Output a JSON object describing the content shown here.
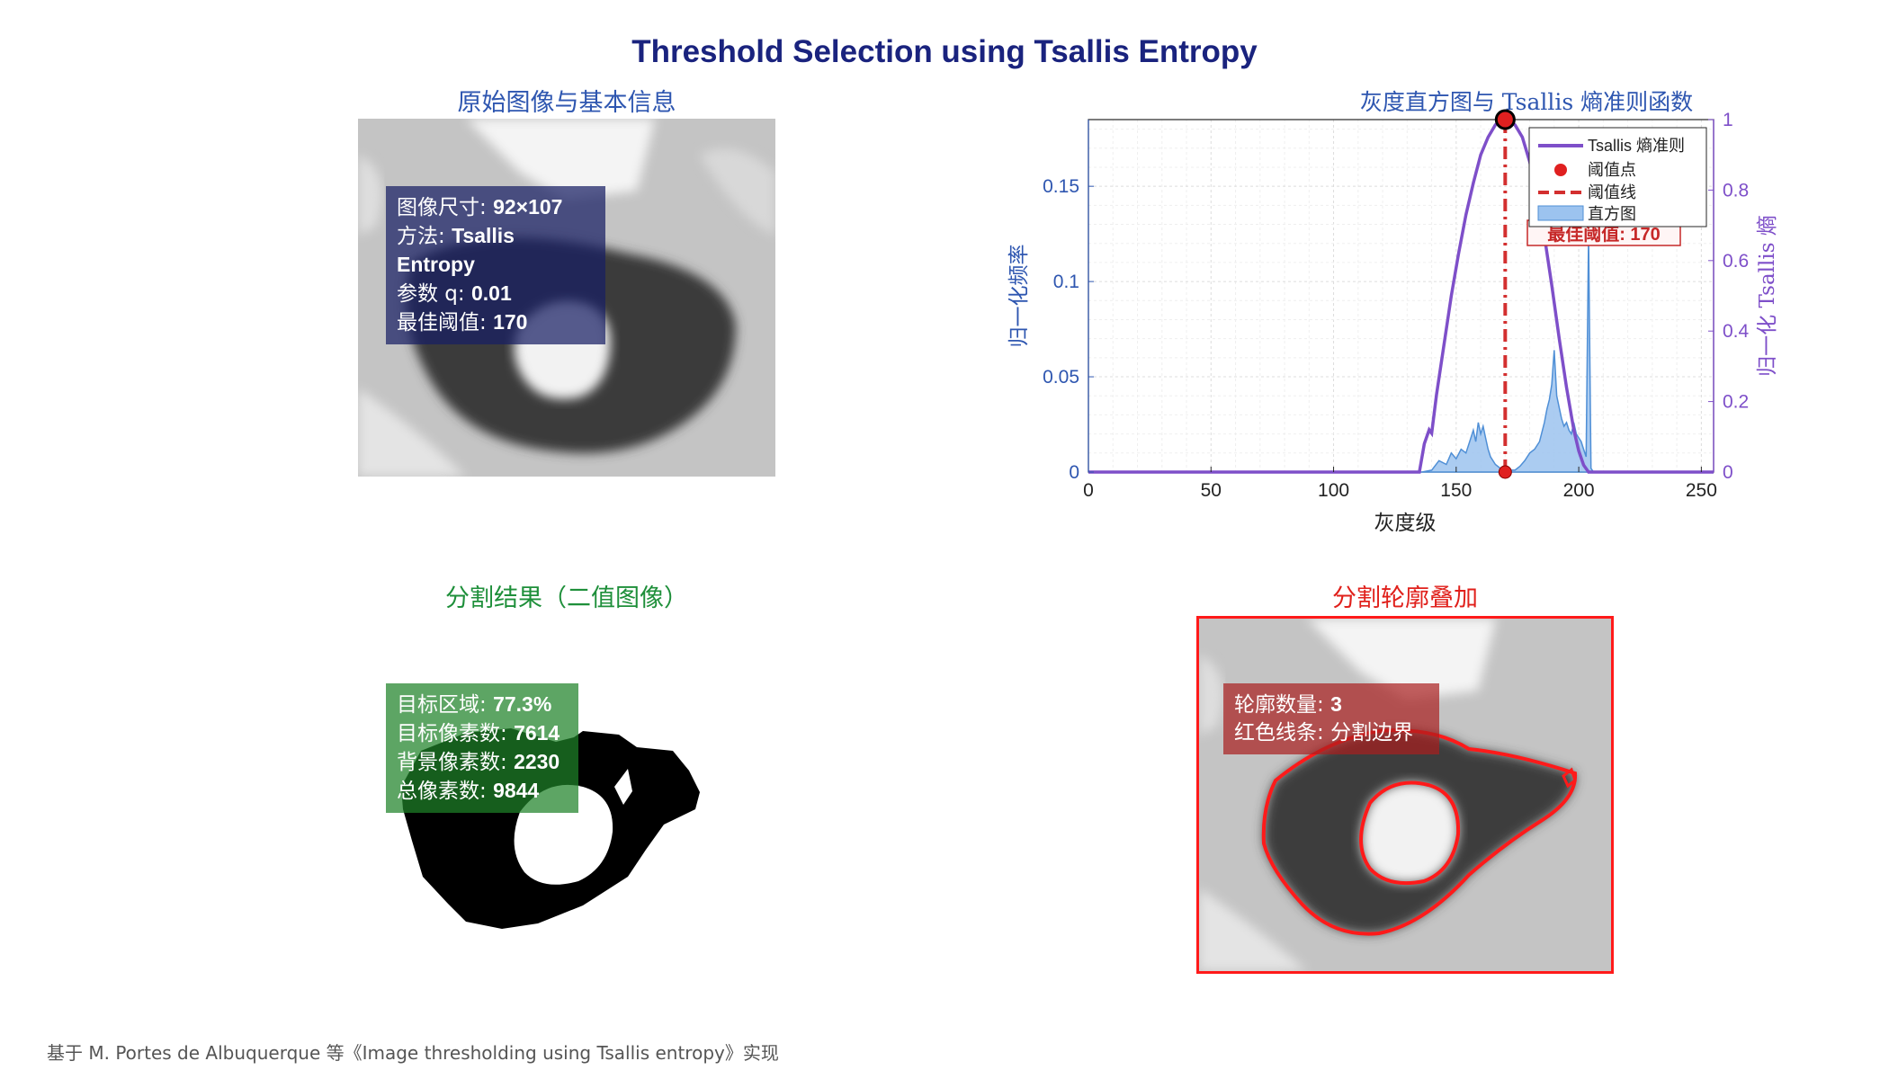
{
  "figure": {
    "title": "Threshold Selection using Tsallis Entropy",
    "footnote": "基于 M. Portes de Albuquerque 等《Image thresholding using Tsallis entropy》实现"
  },
  "panel_original": {
    "title": "原始图像与基本信息",
    "info": [
      {
        "label": "图像尺寸: ",
        "value": "92×107"
      },
      {
        "label": "方法: ",
        "value": "Tsallis Entropy"
      },
      {
        "label": "参数 q: ",
        "value": "0.01"
      },
      {
        "label": "最佳阈值: ",
        "value": "170"
      }
    ]
  },
  "panel_binary": {
    "title": "分割结果（二值图像）",
    "info": [
      {
        "label": "目标区域: ",
        "value": "77.3%"
      },
      {
        "label": "目标像素数: ",
        "value": "7614"
      },
      {
        "label": "背景像素数: ",
        "value": "2230"
      },
      {
        "label": "总像素数: ",
        "value": "9844"
      }
    ]
  },
  "panel_overlay": {
    "title": "分割轮廓叠加",
    "info": [
      {
        "label": "轮廓数量: ",
        "value": "3"
      },
      {
        "label": "红色线条: ",
        "value": "分割边界"
      }
    ]
  },
  "chart_data": {
    "type": "area",
    "title": "灰度直方图与 Tsallis 熵准则函数",
    "xlabel": "灰度级",
    "ylabel": "归一化频率",
    "ylabel_right": "归一化 Tsallis 熵",
    "xlim": [
      0,
      255
    ],
    "ylim": [
      0,
      0.185
    ],
    "ylim_right": [
      0,
      1
    ],
    "xticks": [
      0,
      50,
      100,
      150,
      200,
      250
    ],
    "yticks": [
      0,
      0.05,
      0.1,
      0.15
    ],
    "yticks_right": [
      0,
      0.2,
      0.4,
      0.6,
      0.8,
      1
    ],
    "grid": true,
    "legend_position": "top-right",
    "threshold": 170,
    "annotation": "最佳阈值: 170",
    "series": [
      {
        "name": "直方图",
        "axis": "left",
        "color": "#4f8fd6",
        "points": [
          [
            0,
            0
          ],
          [
            136,
            0
          ],
          [
            140,
            0.001
          ],
          [
            143,
            0.006
          ],
          [
            146,
            0.004
          ],
          [
            148,
            0.01
          ],
          [
            150,
            0.007
          ],
          [
            152,
            0.012
          ],
          [
            154,
            0.01
          ],
          [
            156,
            0.018
          ],
          [
            157,
            0.022
          ],
          [
            158,
            0.016
          ],
          [
            159,
            0.026
          ],
          [
            160,
            0.02
          ],
          [
            161,
            0.024
          ],
          [
            162,
            0.018
          ],
          [
            163,
            0.012
          ],
          [
            164,
            0.008
          ],
          [
            166,
            0.004
          ],
          [
            168,
            0.002
          ],
          [
            170,
            0.001
          ],
          [
            174,
            0.001
          ],
          [
            176,
            0.003
          ],
          [
            178,
            0.006
          ],
          [
            180,
            0.01
          ],
          [
            182,
            0.012
          ],
          [
            184,
            0.016
          ],
          [
            186,
            0.026
          ],
          [
            187,
            0.033
          ],
          [
            188,
            0.038
          ],
          [
            189,
            0.046
          ],
          [
            190,
            0.064
          ],
          [
            191,
            0.04
          ],
          [
            192,
            0.034
          ],
          [
            193,
            0.028
          ],
          [
            194,
            0.024
          ],
          [
            195,
            0.026
          ],
          [
            196,
            0.022
          ],
          [
            197,
            0.02
          ],
          [
            198,
            0.026
          ],
          [
            199,
            0.02
          ],
          [
            200,
            0.018
          ],
          [
            201,
            0.016
          ],
          [
            202,
            0.012
          ],
          [
            203,
            0.008
          ],
          [
            204,
            0.125
          ],
          [
            205,
            0.002
          ],
          [
            206,
            0
          ],
          [
            255,
            0
          ]
        ]
      },
      {
        "name": "Tsallis 熵准则",
        "axis": "right",
        "color": "#7e4fc9",
        "points": [
          [
            0,
            0
          ],
          [
            135,
            0
          ],
          [
            137,
            0.08
          ],
          [
            139,
            0.12
          ],
          [
            140,
            0.11
          ],
          [
            142,
            0.22
          ],
          [
            145,
            0.36
          ],
          [
            148,
            0.5
          ],
          [
            151,
            0.62
          ],
          [
            154,
            0.73
          ],
          [
            157,
            0.82
          ],
          [
            160,
            0.9
          ],
          [
            163,
            0.95
          ],
          [
            166,
            0.985
          ],
          [
            168,
            0.998
          ],
          [
            170,
            1.0
          ],
          [
            172,
            0.998
          ],
          [
            174,
            0.985
          ],
          [
            177,
            0.95
          ],
          [
            180,
            0.88
          ],
          [
            183,
            0.79
          ],
          [
            186,
            0.67
          ],
          [
            189,
            0.53
          ],
          [
            192,
            0.38
          ],
          [
            195,
            0.24
          ],
          [
            198,
            0.12
          ],
          [
            200,
            0.06
          ],
          [
            202,
            0.02
          ],
          [
            204,
            0
          ],
          [
            255,
            0
          ]
        ]
      },
      {
        "name": "阈值点",
        "axis": "left",
        "color": "#e02020",
        "points": [
          [
            170,
            0
          ]
        ]
      },
      {
        "name": "阈值线",
        "axis": "left",
        "color": "#d32f2f",
        "points": [
          [
            170,
            0
          ],
          [
            170,
            0.185
          ]
        ]
      }
    ],
    "peak_marker": {
      "x": 170,
      "y": 1.0,
      "axis": "right"
    }
  }
}
